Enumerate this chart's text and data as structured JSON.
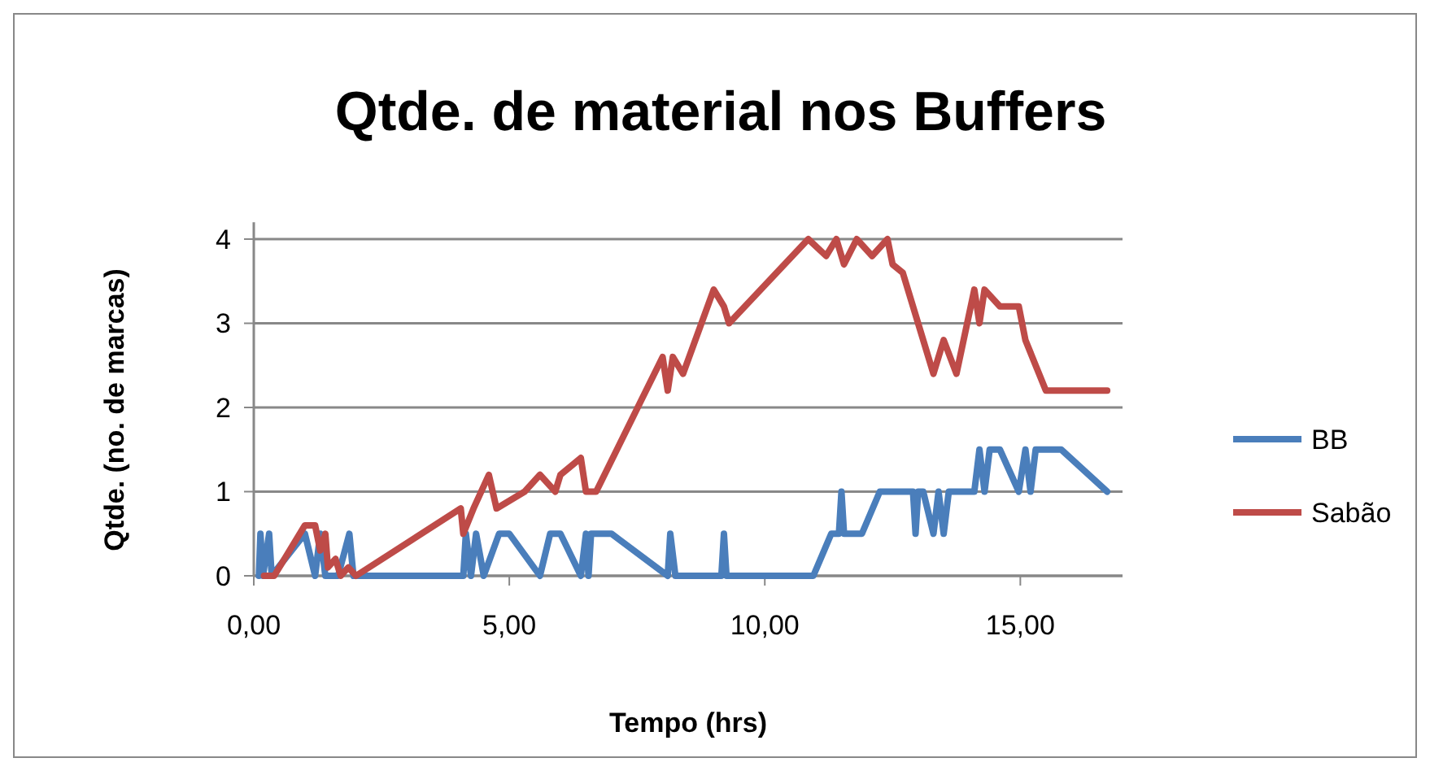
{
  "chart_data": {
    "type": "line",
    "title": "Qtde. de material nos Buffers",
    "xlabel": "Tempo (hrs)",
    "ylabel": "Qtde. (no. de marcas)",
    "xlim": [
      0,
      17
    ],
    "xticks": [
      {
        "value": 0,
        "label": "0,00"
      },
      {
        "value": 5,
        "label": "5,00"
      },
      {
        "value": 10,
        "label": "10,00"
      },
      {
        "value": 15,
        "label": "15,00"
      }
    ],
    "ylim": [
      0,
      4.2
    ],
    "yticks": [
      0,
      1,
      2,
      3,
      4
    ],
    "grid": "y",
    "legend": "right",
    "marker": "none",
    "line_style": "solid",
    "series": [
      {
        "name": "BB",
        "color": "#4a7ebb",
        "x": [
          0.1,
          0.13,
          0.18,
          0.3,
          0.35,
          1.0,
          1.2,
          1.3,
          1.4,
          1.65,
          1.87,
          1.95,
          4.1,
          4.15,
          4.25,
          4.35,
          4.5,
          4.8,
          5.0,
          5.6,
          5.8,
          6.0,
          6.4,
          6.5,
          6.55,
          6.6,
          7.0,
          8.1,
          8.15,
          8.25,
          9.15,
          9.2,
          9.25,
          10.95,
          11.3,
          11.45,
          11.5,
          11.55,
          11.9,
          12.25,
          12.9,
          12.95,
          13.0,
          13.1,
          13.3,
          13.4,
          13.5,
          13.6,
          13.7,
          14.1,
          14.2,
          14.3,
          14.4,
          14.6,
          14.97,
          15.1,
          15.2,
          15.3,
          15.8,
          16.7
        ],
        "values": [
          0,
          0.5,
          0,
          0.5,
          0,
          0.5,
          0,
          0.5,
          0,
          0,
          0.5,
          0,
          0,
          0.5,
          0,
          0.5,
          0,
          0.5,
          0.5,
          0,
          0.5,
          0.5,
          0,
          0.5,
          0,
          0.5,
          0.5,
          0,
          0.5,
          0,
          0,
          0.5,
          0,
          0,
          0.5,
          0.5,
          1,
          0.5,
          0.5,
          1,
          1,
          0.5,
          1,
          1,
          0.5,
          1,
          0.5,
          1,
          1,
          1,
          1.5,
          1,
          1.5,
          1.5,
          1,
          1.5,
          1,
          1.5,
          1.5,
          1
        ]
      },
      {
        "name": "Sabão",
        "color": "#be4b48",
        "x": [
          0.2,
          0.4,
          1.0,
          1.2,
          1.3,
          1.4,
          1.45,
          1.6,
          1.7,
          1.85,
          2.0,
          4.05,
          4.1,
          4.3,
          4.6,
          4.75,
          5.3,
          5.6,
          5.9,
          6.0,
          6.4,
          6.5,
          6.7,
          8.0,
          8.1,
          8.2,
          8.4,
          9.0,
          9.2,
          9.3,
          10.85,
          11.2,
          11.4,
          11.55,
          11.8,
          12.1,
          12.4,
          12.5,
          12.7,
          13.0,
          13.3,
          13.5,
          13.75,
          14.1,
          14.2,
          14.3,
          14.6,
          14.97,
          15.1,
          15.5,
          15.7,
          16.7
        ],
        "values": [
          0,
          0,
          0.6,
          0.6,
          0.3,
          0.5,
          0.1,
          0.2,
          0,
          0.1,
          0,
          0.8,
          0.5,
          0.8,
          1.2,
          0.8,
          1.0,
          1.2,
          1.0,
          1.2,
          1.4,
          1.0,
          1.0,
          2.6,
          2.2,
          2.6,
          2.4,
          3.4,
          3.2,
          3.0,
          4,
          3.8,
          4,
          3.7,
          4,
          3.8,
          4,
          3.7,
          3.6,
          3.0,
          2.4,
          2.8,
          2.4,
          3.4,
          3.0,
          3.4,
          3.2,
          3.2,
          2.8,
          2.2,
          2.2,
          2.2
        ]
      }
    ]
  }
}
